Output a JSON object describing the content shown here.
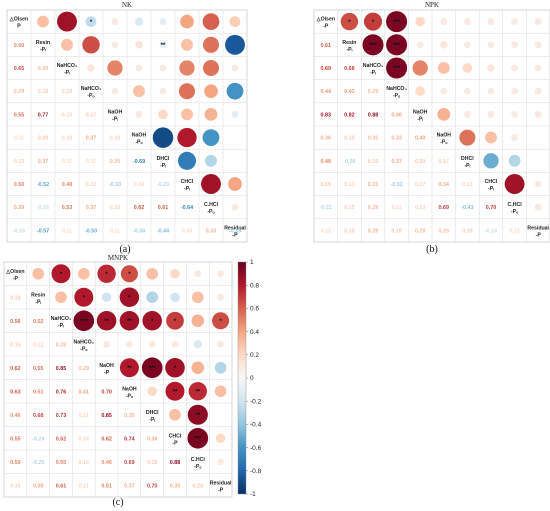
{
  "chart_data": [
    {
      "type": "heatmap",
      "title": "NK",
      "panel_label": "(a)",
      "variables": [
        "△Olsen P",
        "Resin -Pᵢ",
        "NaHCO₃ -Pᵢ",
        "NaHCO₃ -Pₒ",
        "NaOH -Pᵢ",
        "NaOH -Pₒ",
        "DHCl -Pᵢ",
        "CHCl -Pᵢ",
        "C.HCl -Pₒ",
        "Residual -P"
      ],
      "lower": [
        [
          0.5
        ],
        [
          0.65,
          0.3
        ],
        [
          0.29,
          0.18,
          0.19
        ],
        [
          0.55,
          0.77,
          0.15,
          0.17
        ],
        [
          0.11,
          0.2,
          0.16,
          0.37,
          0.16
        ],
        [
          0.13,
          0.37,
          0.11,
          0.11,
          0.3,
          -0.69
        ],
        [
          0.5,
          -0.52,
          0.48,
          0.12,
          -0.33,
          0.1,
          -0.23
        ],
        [
          0.39,
          -0.15,
          0.53,
          0.37,
          0.15,
          0.62,
          0.61,
          -0.64
        ],
        [
          -0.16,
          -0.57,
          0.11,
          -0.5,
          0.11,
          -0.34,
          -0.44,
          0.1,
          0.33,
          -0.39
        ]
      ],
      "upper": [
        [
          0.3,
          0.85,
          -0.25,
          0.1,
          -0.15,
          -0.1,
          0.4,
          0.6,
          0.25
        ],
        [
          0.3,
          0.65,
          0.1,
          0.12,
          -0.1,
          0.3,
          0.55,
          -0.85
        ],
        [
          0.12,
          0.5,
          0.1,
          0.1,
          0.5,
          0.55,
          0.1
        ],
        [
          0.1,
          0.3,
          0.1,
          0.55,
          0.4,
          -0.6
        ],
        [
          0.1,
          0.2,
          0.3,
          0.35,
          -0.1
        ],
        [
          -0.9,
          0.8,
          -0.6
        ],
        [
          -0.7,
          -0.3
        ],
        [
          0.85,
          0.4
        ],
        [
          0.1
        ]
      ],
      "upper_marks": {
        "0,2": "*",
        "1,4": "**",
        "5,7": "*",
        "7,8": "*"
      }
    },
    {
      "type": "heatmap",
      "title": "NPK",
      "panel_label": "(b)",
      "variables": [
        "△Olsen -P",
        "Resin -Pᵢ",
        "NaHCO₃ -Pᵢ",
        "NaHCO₃ -Pₒ",
        "NaOH -Pᵢ",
        "NaOH -Pₒ",
        "DHCl -Pᵢ",
        "CHCl -Pᵢ",
        "C.HCl -Pₒ",
        "Residual -P"
      ],
      "lower": [
        [
          0.61
        ],
        [
          0.69,
          0.68
        ],
        [
          0.44,
          0.43,
          0.29
        ],
        [
          0.83,
          0.82,
          0.88,
          0.4
        ],
        [
          0.36,
          0.18,
          0.31,
          0.33,
          0.4
        ],
        [
          0.48,
          -0.26,
          0.19,
          0.37,
          0.2,
          0.17
        ],
        [
          0.19,
          0.12,
          0.31,
          -0.32,
          0.17,
          0.34,
          0.12
        ],
        [
          -0.21,
          0.15,
          0.29,
          0.11,
          0.13,
          0.69,
          -0.43,
          0.7
        ],
        [
          0.11,
          0.18,
          0.29,
          0.19,
          0.28,
          0.25,
          0.19,
          -0.14,
          0.12
        ]
      ],
      "upper": [
        [
          0.65,
          0.7,
          0.95,
          0.2,
          0.1,
          0.1,
          0.1,
          0.1,
          0.1
        ],
        [
          0.95,
          0.95,
          0.1,
          0.12,
          0.1,
          0.1,
          0.1,
          0.1
        ],
        [
          0.95,
          0.5,
          0.3,
          0.2,
          0.12,
          0.1,
          0.1
        ],
        [
          0.2,
          0.1,
          0.1,
          0.1,
          0.1,
          0.1
        ],
        [
          0.35,
          0.1,
          0.1,
          0.1,
          0.1
        ],
        [
          0.55,
          0.3,
          0.1
        ],
        [
          -0.5,
          -0.3
        ],
        [
          0.85,
          0.1
        ],
        [
          0.1
        ]
      ],
      "upper_marks": {
        "0,0": "*",
        "0,1": "*",
        "0,2": "***",
        "1,0": "***",
        "1,1": "***",
        "2,0": "***",
        "5,6": "*",
        "7,8": "**"
      }
    },
    {
      "type": "heatmap",
      "title": "MNPK",
      "panel_label": "(c)",
      "variables": [
        "△Olsen -P",
        "Resin -Pᵢ",
        "NaHCO₃ -Pᵢ",
        "NaHCO₃ -Pₒ",
        "NaOH -P",
        "NaOH -Pₒ",
        "DHCl -Pᵢ",
        "CHCl -P",
        "C.HCl -Pₒ",
        "Residual -P"
      ],
      "lower": [
        [
          0.18
        ],
        [
          0.56,
          0.52
        ],
        [
          0.15,
          0.12,
          0.28
        ],
        [
          0.62,
          0.55,
          0.85,
          0.29
        ],
        [
          0.63,
          0.51,
          0.76,
          0.41,
          0.7
        ],
        [
          0.46,
          0.68,
          0.73,
          0.11,
          0.85,
          0.35
        ],
        [
          0.55,
          -0.24,
          0.62,
          0.14,
          0.62,
          0.74,
          0.36
        ],
        [
          0.5,
          -0.25,
          0.5,
          0.16,
          0.46,
          0.69,
          0.18,
          0.88
        ],
        [
          0.15,
          0.38,
          0.61,
          0.11,
          0.51,
          0.37,
          0.7,
          0.35,
          0.23
        ]
      ],
      "upper": [
        [
          0.3,
          0.8,
          0.3,
          0.75,
          0.65,
          0.3,
          0.2,
          0.1,
          0.1
        ],
        [
          0.3,
          0.8,
          -0.2,
          0.85,
          -0.3,
          -0.2,
          0.3,
          0.1
        ],
        [
          0.95,
          0.85,
          0.85,
          0.85,
          0.7,
          0.35,
          0.65
        ],
        [
          0.1,
          0.1,
          0.1,
          0.1,
          -0.15,
          0.1
        ],
        [
          0.8,
          0.95,
          0.85,
          0.35,
          -0.3
        ],
        [
          0.2,
          0.8,
          0.75,
          0.3
        ],
        [
          0.3,
          0.9
        ],
        [
          0.95,
          0.2
        ],
        [
          0.1
        ]
      ],
      "upper_marks": {
        "0,1": "*",
        "0,3": "*",
        "0,4": "*",
        "1,1": "*",
        "1,3": "*",
        "2,0": "***",
        "2,1": "**",
        "2,2": "**",
        "2,3": "*",
        "2,4": "*",
        "2,6": "*",
        "4,0": "**",
        "4,1": "***",
        "4,2": "*",
        "5,1": "**",
        "5,2": "**",
        "6,1": "**",
        "7,0": "***"
      }
    }
  ],
  "colorbar": {
    "ticks": [
      "1",
      "0.8",
      "0.6",
      "0.4",
      "0.2",
      "0",
      "-0.2",
      "-0.4",
      "-0.6",
      "-0.8",
      "-1"
    ],
    "range": [
      -1,
      1
    ],
    "colors": [
      "#67001f",
      "#b2182b",
      "#d6604d",
      "#f4a582",
      "#fddbc7",
      "#f7f7f7",
      "#d1e5f0",
      "#92c5de",
      "#4393c3",
      "#2166ac",
      "#053061"
    ]
  }
}
